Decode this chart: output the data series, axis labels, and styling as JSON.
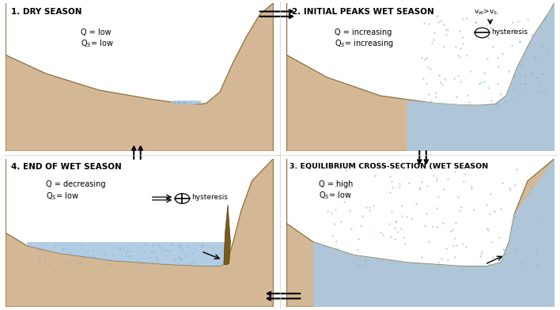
{
  "bg_color": "#ffffff",
  "sand_color": "#d4b896",
  "sand_edge_color": "#8b7040",
  "water_color": "#aac8e0",
  "outer_sand_color": "#c8aa78",
  "title1": "1. DRY SEASON",
  "title2": "2. INITIAL PEAKS WET SEASON",
  "title3": "3. EQUILIBRIUM CROSS-SECTION (WET SEASON",
  "title4": "4. END OF WET SEASON",
  "stipple_color": "#7aaac8",
  "arrow_color": "#333333",
  "collapsed_bank_color": "#8b6914"
}
